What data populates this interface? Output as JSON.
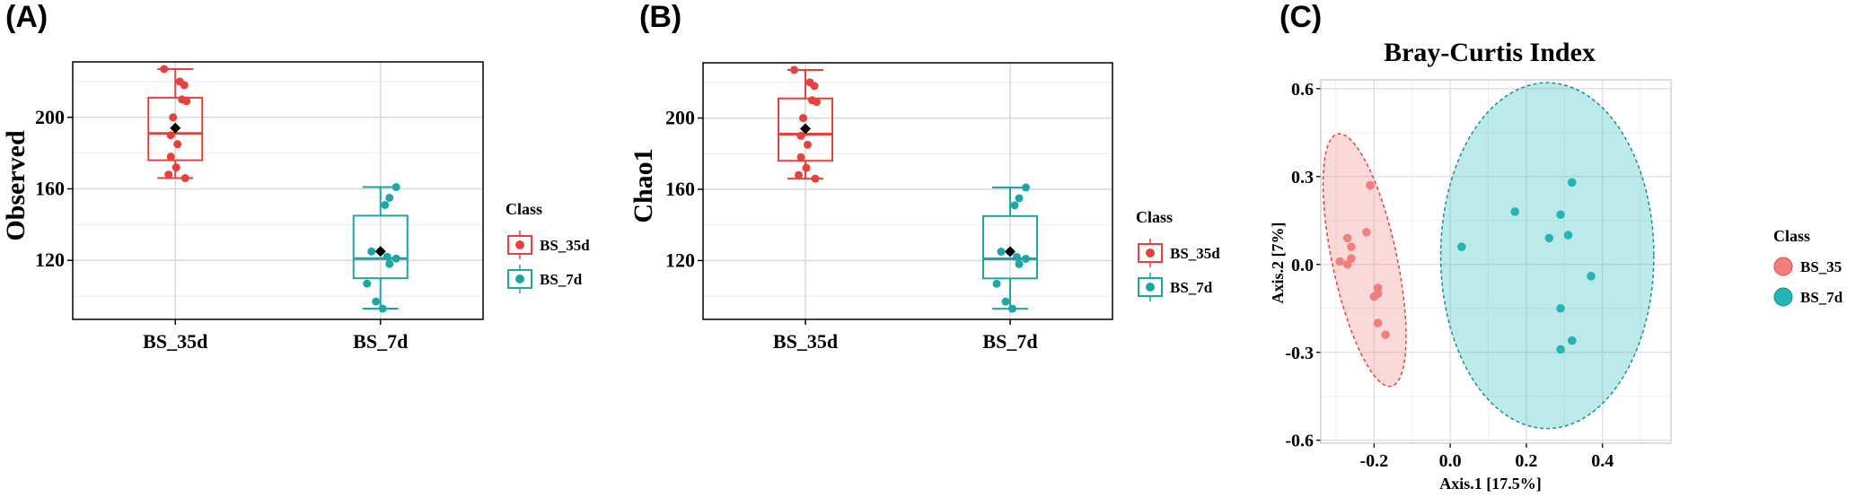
{
  "chart_data": [
    {
      "panel": "(A)",
      "type": "box",
      "ylabel": "Observed",
      "xlabel": "",
      "categories": [
        "BS_35d",
        "BS_7d"
      ],
      "y_ticks": [
        120,
        160,
        200
      ],
      "ylim": [
        87,
        231
      ],
      "grid": true,
      "legend": {
        "title": "Class",
        "position": "right",
        "entries": [
          "BS_35d",
          "BS_7d"
        ]
      },
      "colors": {
        "BS_35d": "#e8413b",
        "BS_7d": "#1fa5a5"
      },
      "boxes": [
        {
          "category": "BS_35d",
          "min": 166,
          "q1": 176,
          "median": 191,
          "q3": 211,
          "max": 227,
          "mean": 194,
          "points": [
            {
              "j": -0.25,
              "y": 227
            },
            {
              "j": 0.1,
              "y": 220
            },
            {
              "j": 0.2,
              "y": 218
            },
            {
              "j": 0.15,
              "y": 210
            },
            {
              "j": 0.25,
              "y": 209
            },
            {
              "j": -0.05,
              "y": 200
            },
            {
              "j": -0.1,
              "y": 190
            },
            {
              "j": 0.05,
              "y": 185
            },
            {
              "j": -0.1,
              "y": 178
            },
            {
              "j": 0.02,
              "y": 172
            },
            {
              "j": -0.15,
              "y": 168
            },
            {
              "j": 0.22,
              "y": 166
            }
          ]
        },
        {
          "category": "BS_7d",
          "min": 93,
          "q1": 110,
          "median": 121,
          "q3": 145,
          "max": 161,
          "mean": 125,
          "points": [
            {
              "j": 0.35,
              "y": 161
            },
            {
              "j": 0.2,
              "y": 155
            },
            {
              "j": 0.1,
              "y": 151
            },
            {
              "j": -0.2,
              "y": 125
            },
            {
              "j": 0.0,
              "y": 125
            },
            {
              "j": 0.15,
              "y": 122
            },
            {
              "j": 0.35,
              "y": 121
            },
            {
              "j": 0.2,
              "y": 118
            },
            {
              "j": -0.3,
              "y": 107
            },
            {
              "j": -0.1,
              "y": 97
            },
            {
              "j": 0.05,
              "y": 93
            }
          ]
        }
      ]
    },
    {
      "panel": "(B)",
      "type": "box",
      "ylabel": "Chao1",
      "xlabel": "",
      "categories": [
        "BS_35d",
        "BS_7d"
      ],
      "y_ticks": [
        120,
        160,
        200
      ],
      "ylim": [
        87,
        231
      ],
      "grid": true,
      "legend": {
        "title": "Class",
        "position": "right",
        "entries": [
          "BS_35d",
          "BS_7d"
        ]
      },
      "colors": {
        "BS_35d": "#e8413b",
        "BS_7d": "#1fa5a5"
      },
      "boxes": [
        {
          "category": "BS_35d",
          "min": 166,
          "q1": 176,
          "median": 191,
          "q3": 211,
          "max": 227,
          "mean": 194,
          "points": [
            {
              "j": -0.25,
              "y": 227
            },
            {
              "j": 0.1,
              "y": 220
            },
            {
              "j": 0.2,
              "y": 218
            },
            {
              "j": 0.15,
              "y": 210
            },
            {
              "j": 0.25,
              "y": 209
            },
            {
              "j": -0.05,
              "y": 200
            },
            {
              "j": -0.1,
              "y": 190
            },
            {
              "j": 0.05,
              "y": 185
            },
            {
              "j": -0.1,
              "y": 178
            },
            {
              "j": 0.02,
              "y": 172
            },
            {
              "j": -0.15,
              "y": 168
            },
            {
              "j": 0.22,
              "y": 166
            }
          ]
        },
        {
          "category": "BS_7d",
          "min": 93,
          "q1": 110,
          "median": 121,
          "q3": 145,
          "max": 161,
          "mean": 125,
          "points": [
            {
              "j": 0.35,
              "y": 161
            },
            {
              "j": 0.2,
              "y": 155
            },
            {
              "j": 0.1,
              "y": 151
            },
            {
              "j": -0.2,
              "y": 125
            },
            {
              "j": 0.0,
              "y": 125
            },
            {
              "j": 0.15,
              "y": 122
            },
            {
              "j": 0.35,
              "y": 121
            },
            {
              "j": 0.2,
              "y": 118
            },
            {
              "j": -0.3,
              "y": 107
            },
            {
              "j": -0.1,
              "y": 97
            },
            {
              "j": 0.05,
              "y": 93
            }
          ]
        }
      ]
    },
    {
      "panel": "(C)",
      "type": "scatter",
      "title": "Bray-Curtis Index",
      "xlabel": "Axis.1 [17.5%]",
      "ylabel": "Axis.2 [7%]",
      "x_ticks": [
        -0.2,
        0.0,
        0.2,
        0.4
      ],
      "y_ticks": [
        -0.6,
        -0.3,
        0.0,
        0.3,
        0.6
      ],
      "x_tick_labels": [
        "-0.2",
        "0.0",
        "0.2",
        "0.4"
      ],
      "y_tick_labels": [
        "-0.6",
        "-0.3",
        "0.0",
        "0.3",
        "0.6"
      ],
      "xlim": [
        -0.34,
        0.58
      ],
      "ylim": [
        -0.61,
        0.63
      ],
      "grid": true,
      "legend": {
        "title": "Class",
        "position": "right",
        "entries": [
          "BS_35",
          "BS_7d"
        ]
      },
      "series": [
        {
          "name": "BS_35",
          "color": "#f08080",
          "points": [
            [
              -0.21,
              0.27
            ],
            [
              -0.27,
              0.09
            ],
            [
              -0.22,
              0.11
            ],
            [
              -0.26,
              0.06
            ],
            [
              -0.29,
              0.01
            ],
            [
              -0.27,
              0.0
            ],
            [
              -0.26,
              0.02
            ],
            [
              -0.19,
              -0.08
            ],
            [
              -0.19,
              -0.1
            ],
            [
              -0.2,
              -0.11
            ],
            [
              -0.19,
              -0.2
            ],
            [
              -0.17,
              -0.24
            ]
          ],
          "ellipse": {
            "cx": -0.225,
            "cy": 0.015,
            "rx": 0.085,
            "ry": 0.44,
            "angle": -12
          }
        },
        {
          "name": "BS_7d",
          "color": "#22b5b5",
          "points": [
            [
              0.32,
              0.28
            ],
            [
              0.17,
              0.18
            ],
            [
              0.29,
              0.17
            ],
            [
              0.31,
              0.1
            ],
            [
              0.26,
              0.09
            ],
            [
              0.03,
              0.06
            ],
            [
              0.37,
              -0.04
            ],
            [
              0.29,
              -0.15
            ],
            [
              0.32,
              -0.26
            ],
            [
              0.29,
              -0.29
            ]
          ],
          "ellipse": {
            "cx": 0.255,
            "cy": 0.03,
            "rx": 0.28,
            "ry": 0.59,
            "angle": 0
          }
        }
      ]
    }
  ]
}
